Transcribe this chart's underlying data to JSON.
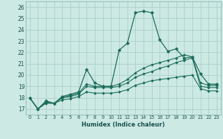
{
  "xlabel": "Humidex (Indice chaleur)",
  "xlim": [
    -0.5,
    23.5
  ],
  "ylim": [
    16.5,
    26.5
  ],
  "yticks": [
    17,
    18,
    19,
    20,
    21,
    22,
    23,
    24,
    25,
    26
  ],
  "xticks": [
    0,
    1,
    2,
    3,
    4,
    5,
    6,
    7,
    8,
    9,
    10,
    11,
    12,
    13,
    14,
    15,
    16,
    17,
    18,
    19,
    20,
    21,
    22,
    23
  ],
  "bg_color": "#cce9e3",
  "grid_color": "#aacfc8",
  "line_color": "#1a6b5a",
  "series": [
    {
      "x": [
        0,
        1,
        2,
        3,
        4,
        5,
        6,
        7,
        8,
        9,
        10,
        11,
        12,
        13,
        14,
        15,
        16,
        17,
        18,
        19,
        20,
        21,
        22,
        23
      ],
      "y": [
        18.0,
        17.0,
        17.7,
        17.5,
        18.1,
        18.3,
        18.5,
        20.5,
        19.3,
        19.0,
        19.0,
        22.2,
        22.8,
        25.5,
        25.65,
        25.5,
        23.1,
        22.1,
        22.3,
        21.5,
        21.6,
        20.1,
        19.2,
        19.2
      ],
      "ms": 2.5,
      "lw": 0.9
    },
    {
      "x": [
        0,
        1,
        2,
        3,
        4,
        5,
        6,
        7,
        8,
        9,
        10,
        11,
        12,
        13,
        14,
        15,
        16,
        17,
        18,
        19,
        20,
        21,
        22,
        23
      ],
      "y": [
        18.0,
        17.0,
        17.7,
        17.5,
        18.0,
        18.2,
        18.4,
        19.2,
        19.0,
        19.0,
        19.0,
        19.2,
        19.6,
        20.2,
        20.6,
        20.9,
        21.1,
        21.3,
        21.5,
        21.8,
        21.6,
        19.3,
        19.1,
        19.1
      ],
      "ms": 2.0,
      "lw": 0.8
    },
    {
      "x": [
        0,
        1,
        2,
        3,
        4,
        5,
        6,
        7,
        8,
        9,
        10,
        11,
        12,
        13,
        14,
        15,
        16,
        17,
        18,
        19,
        20,
        21,
        22,
        23
      ],
      "y": [
        18.0,
        17.0,
        17.6,
        17.5,
        18.0,
        18.1,
        18.3,
        19.0,
        18.9,
        18.9,
        18.9,
        19.0,
        19.3,
        19.8,
        20.1,
        20.3,
        20.6,
        20.8,
        21.1,
        21.3,
        21.5,
        19.0,
        18.9,
        18.9
      ],
      "ms": 2.0,
      "lw": 0.8
    },
    {
      "x": [
        0,
        1,
        2,
        3,
        4,
        5,
        6,
        7,
        8,
        9,
        10,
        11,
        12,
        13,
        14,
        15,
        16,
        17,
        18,
        19,
        20,
        21,
        22,
        23
      ],
      "y": [
        18.0,
        17.0,
        17.5,
        17.5,
        17.8,
        17.9,
        18.1,
        18.5,
        18.4,
        18.4,
        18.4,
        18.5,
        18.7,
        19.1,
        19.3,
        19.5,
        19.6,
        19.7,
        19.8,
        19.9,
        20.0,
        18.8,
        18.6,
        18.6
      ],
      "ms": 2.0,
      "lw": 0.8
    }
  ]
}
